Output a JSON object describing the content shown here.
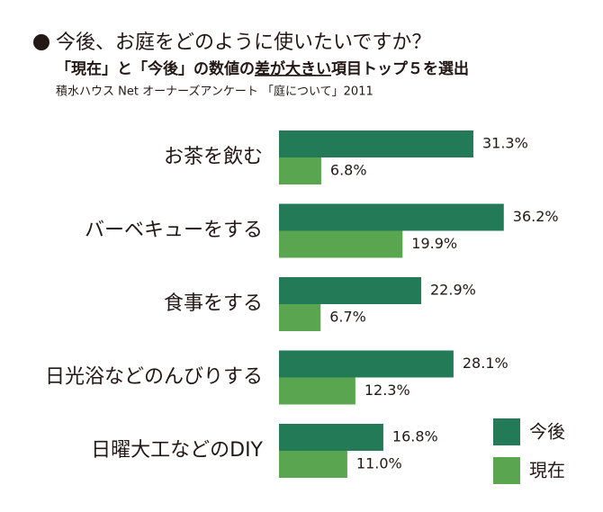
{
  "chart_data": {
    "type": "bar",
    "orientation": "horizontal",
    "title": "今後、お庭をどのように使いたいですか？",
    "subtitle": [
      "「現在」と「今後」の数値の",
      "差が大きい",
      "項目トップ５を選出"
    ],
    "source": "積水ハウス Net オーナーズアンケート 「庭について」2011",
    "categories": [
      "お茶を飲む",
      "バーベキューをする",
      "食事をする",
      "日光浴などのんびりする",
      "日曜大工などのDIY"
    ],
    "series": [
      {
        "name": "今後",
        "color": "#237a57",
        "values": [
          31.3,
          36.2,
          22.9,
          28.1,
          16.8
        ],
        "value_labels": [
          "31.3%",
          "36.2%",
          "22.9%",
          "28.1%",
          "16.8%"
        ]
      },
      {
        "name": "現在",
        "color": "#5aa550",
        "values": [
          6.8,
          19.9,
          6.7,
          12.3,
          11.0
        ],
        "value_labels": [
          "6.8%",
          "19.9%",
          "6.7%",
          "12.3%",
          "11.0%"
        ]
      }
    ]
  }
}
